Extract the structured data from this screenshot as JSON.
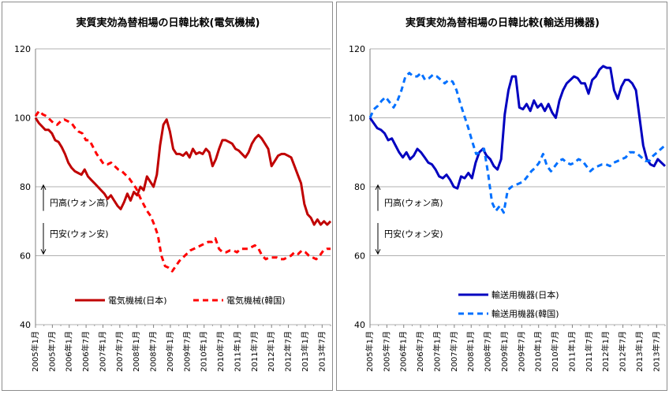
{
  "x_labels": [
    "2005年1月",
    "2005年7月",
    "2006年1月",
    "2006年7月",
    "2007年1月",
    "2007年7月",
    "2008年1月",
    "2008年7月",
    "2009年1月",
    "2009年7月",
    "2010年1月",
    "2010年7月",
    "2011年1月",
    "2011年7月",
    "2012年1月",
    "2012年7月",
    "2013年1月",
    "2013年7月"
  ],
  "chart_data": [
    {
      "type": "line",
      "title": "実質実効為替相場の日韓比較(電気機械)",
      "ylim": [
        40,
        120
      ],
      "yticks": [
        40,
        60,
        80,
        100,
        120
      ],
      "grid": true,
      "legend_position": "bottom",
      "annotations": {
        "upper": "円高(ウォン高)",
        "lower": "円安(ウォン安)"
      },
      "x_start": "2005年1月",
      "x_end": "2013年10月",
      "series": [
        {
          "name": "電気機械(日本)",
          "color": "#c00000",
          "style": "solid",
          "values": [
            100,
            98.5,
            97.5,
            96.5,
            96.5,
            95.5,
            93.5,
            93,
            91.5,
            89.5,
            87,
            85.5,
            84.5,
            84,
            83.5,
            85,
            83,
            82,
            81,
            80,
            79,
            78,
            76.5,
            77.5,
            76,
            74.5,
            73.5,
            75.5,
            78,
            76,
            78.5,
            77.5,
            80,
            79,
            83,
            81.5,
            80,
            83.5,
            92,
            98,
            99.5,
            96,
            91,
            89.5,
            89.5,
            89,
            90,
            88.5,
            91,
            89.5,
            90,
            89.5,
            91,
            90,
            86,
            88,
            91,
            93.5,
            93.5,
            93,
            92.5,
            91,
            90.5,
            89.5,
            88.5,
            90,
            92.5,
            94,
            95,
            94,
            92.5,
            91,
            86,
            87.5,
            89,
            89.5,
            89.5,
            89,
            88.5,
            86,
            83.5,
            81,
            75,
            72,
            71,
            69,
            70.5,
            69,
            70,
            69,
            70
          ]
        },
        {
          "name": "電気機械(韓国)",
          "color": "#ff0000",
          "style": "dashed",
          "values": [
            100.5,
            102,
            101,
            100.5,
            99.5,
            98.5,
            98,
            99,
            99.5,
            99,
            98.5,
            97,
            96,
            95.5,
            93.5,
            93.5,
            91.5,
            89.5,
            88,
            86.5,
            86.5,
            87,
            86,
            85,
            84.5,
            83.5,
            82.5,
            81,
            79.5,
            77,
            75,
            73,
            71.5,
            69,
            66,
            60,
            57,
            56.5,
            55.5,
            57,
            58.5,
            59.5,
            60.5,
            61.5,
            62,
            62.5,
            63,
            63.5,
            64,
            64,
            65,
            62,
            61,
            61,
            61.5,
            61.5,
            61,
            62,
            62,
            62,
            62.5,
            63,
            62,
            60,
            59,
            59.5,
            59.5,
            59.5,
            59,
            59,
            59.5,
            60,
            61,
            60.5,
            61.5,
            61,
            60,
            59.5,
            59,
            60,
            61.5,
            62,
            62
          ]
        }
      ]
    },
    {
      "type": "line",
      "title": "実質実効為替相場の日韓比較(輸送用機器)",
      "ylim": [
        40,
        120
      ],
      "yticks": [
        40,
        60,
        80,
        100,
        120
      ],
      "grid": true,
      "legend_position": "bottom",
      "annotations": {
        "upper": "円高(ウォン高)",
        "lower": "円安(ウォン安)"
      },
      "x_start": "2005年1月",
      "x_end": "2013年10月",
      "series": [
        {
          "name": "輸送用機器(日本)",
          "color": "#0000c0",
          "style": "solid",
          "values": [
            100,
            98.5,
            97,
            96.5,
            95.5,
            93.5,
            94,
            92,
            90,
            88.5,
            90,
            88,
            89,
            91,
            90,
            88.5,
            87,
            86.5,
            85,
            83,
            82.5,
            83.5,
            82,
            80,
            79.5,
            83,
            82.5,
            84,
            82.5,
            87,
            90,
            91,
            89,
            88,
            86,
            85,
            88,
            101,
            108,
            112,
            112,
            103,
            102.5,
            104,
            102,
            105,
            103,
            104,
            102,
            104,
            101.5,
            100,
            105,
            108,
            110,
            111,
            112,
            111.5,
            110,
            110,
            107,
            111,
            112,
            114,
            115,
            114.5,
            114.5,
            108,
            105.5,
            109,
            111,
            111,
            110,
            108,
            100,
            92,
            88,
            86.5,
            86,
            88,
            87,
            86
          ]
        },
        {
          "name": "輸送用機器(韓国)",
          "color": "#0070ff",
          "style": "dashed",
          "values": [
            100,
            102.5,
            103.5,
            105,
            106,
            104.5,
            103,
            105,
            108,
            112,
            113,
            112,
            112,
            113,
            111,
            111.5,
            112.5,
            112,
            111,
            110,
            111,
            110.5,
            108,
            104,
            100.5,
            97,
            93,
            89.5,
            90,
            91,
            84,
            75.5,
            73,
            74.5,
            72.5,
            79,
            80,
            80.5,
            81,
            81.5,
            83,
            84.5,
            85.5,
            87,
            89.5,
            86,
            84.5,
            86,
            87.5,
            88,
            87,
            86.5,
            87,
            88,
            87.5,
            86,
            84.5,
            85.5,
            86,
            86.5,
            86.5,
            86,
            87,
            87.5,
            88,
            88.5,
            90,
            90,
            89.5,
            88.5,
            87.5,
            87.5,
            89,
            90,
            91,
            92
          ]
        }
      ]
    }
  ]
}
